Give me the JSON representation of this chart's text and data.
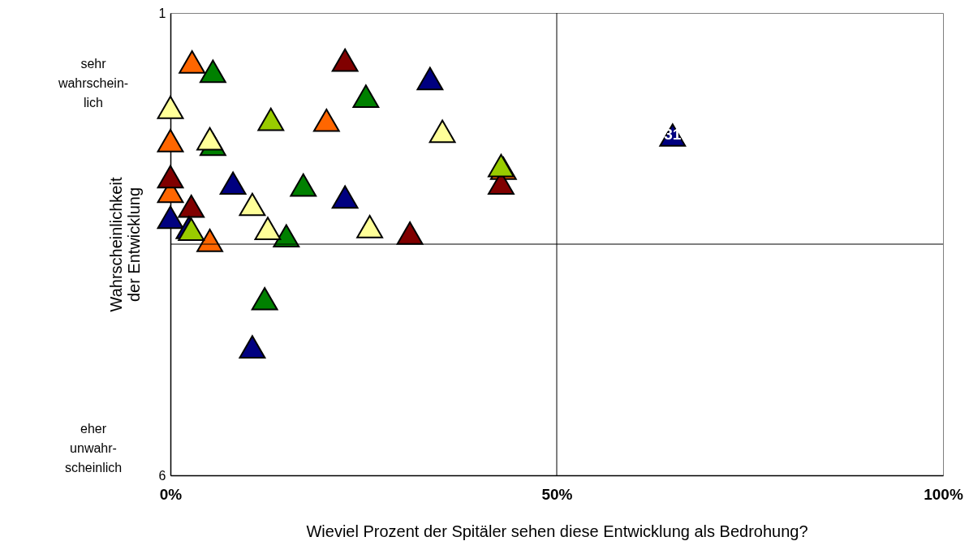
{
  "chart_data": {
    "type": "scatter",
    "xlabel": "Wieviel Prozent der Spitäler sehen diese Entwicklung als Bedrohung?",
    "ylabel": "Wahrscheinlichkeit der Entwicklung",
    "xlim": [
      0,
      100
    ],
    "xticks": [
      {
        "value": 0,
        "label": "0%"
      },
      {
        "value": 50,
        "label": "50%"
      },
      {
        "value": 100,
        "label": "100%"
      }
    ],
    "ylim": [
      6,
      1
    ],
    "yticks": [
      1,
      6
    ],
    "grid": false,
    "marker": "triangle",
    "series": [
      {
        "color": "#ff6600",
        "x": [
          2.8,
          0,
          0,
          5.1,
          20.2,
          43.1
        ],
        "values": [
          1.53,
          2.38,
          2.93,
          3.46,
          2.16,
          2.68
        ]
      },
      {
        "color": "#008000",
        "x": [
          5.5,
          5.5,
          25.3,
          17.2,
          15.0,
          12.2
        ],
        "values": [
          1.63,
          2.42,
          1.9,
          2.86,
          3.41,
          4.09
        ]
      },
      {
        "color": "#800000",
        "x": [
          22.6,
          0,
          2.7,
          31.0,
          42.8
        ],
        "values": [
          1.51,
          2.77,
          3.09,
          3.38,
          2.84
        ]
      },
      {
        "color": "#000080",
        "x": [
          33.6,
          8.1,
          22.6,
          0,
          2.4,
          10.6,
          65.0
        ],
        "values": [
          1.71,
          2.84,
          2.99,
          3.21,
          3.32,
          4.61,
          2.32
        ]
      },
      {
        "color": "#99cc00",
        "x": [
          13.0,
          2.7,
          42.8
        ],
        "values": [
          2.15,
          3.34,
          2.65
        ]
      },
      {
        "color": "#ffff99",
        "x": [
          0,
          5.1,
          35.2,
          10.6,
          12.6,
          25.8
        ],
        "values": [
          2.02,
          2.36,
          2.28,
          3.07,
          3.33,
          3.31
        ]
      }
    ],
    "ref_lines": [
      {
        "axis": "x",
        "value": 50
      },
      {
        "axis": "y",
        "value": 3.5
      }
    ],
    "annotations": [
      "sehr\nwahrschein-\nlich",
      "eher\nunwahr-\nscheinlich",
      {
        "text": "31",
        "x": 65.0,
        "y": 2.32
      }
    ]
  }
}
